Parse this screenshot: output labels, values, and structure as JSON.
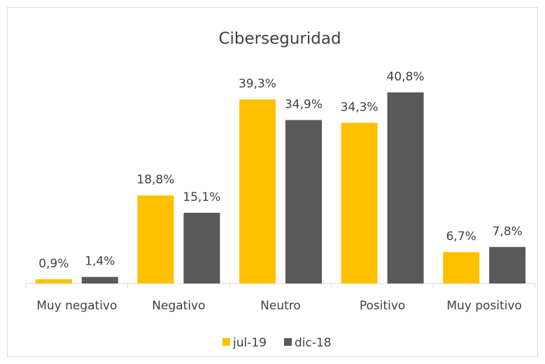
{
  "chart_data": {
    "type": "bar",
    "title": "Ciberseguridad",
    "categories": [
      "Muy negativo",
      "Negativo",
      "Neutro",
      "Positivo",
      "Muy positivo"
    ],
    "series": [
      {
        "name": "jul-19",
        "color": "#FFC000",
        "values": [
          0.9,
          18.8,
          39.3,
          34.3,
          6.7
        ],
        "value_labels": [
          "0,9%",
          "18,8%",
          "39,3%",
          "34,3%",
          "6,7%"
        ]
      },
      {
        "name": "dic-18",
        "color": "#595959",
        "values": [
          1.4,
          15.1,
          34.9,
          40.8,
          7.8
        ],
        "value_labels": [
          "1,4%",
          "15,1%",
          "34,9%",
          "40,8%",
          "7,8%"
        ]
      }
    ],
    "legend": "bottom"
  }
}
